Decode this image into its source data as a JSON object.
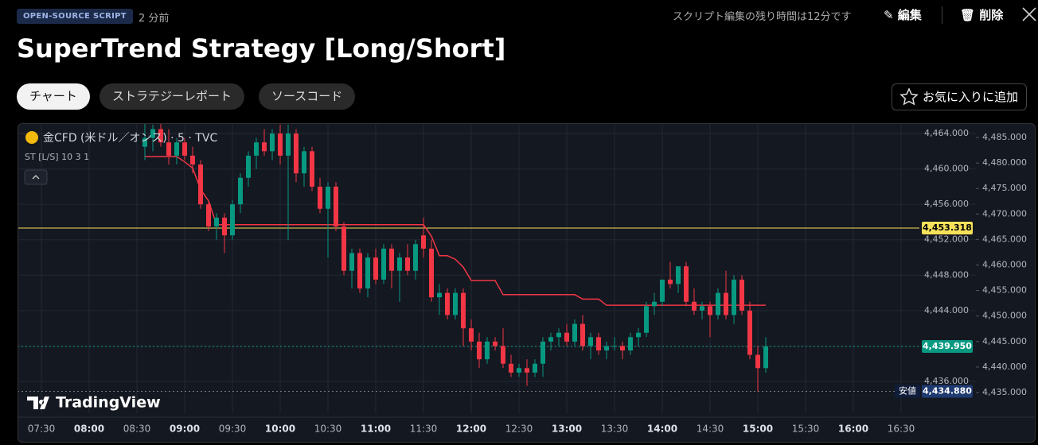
{
  "header": {
    "badge": "OPEN-SOURCE SCRIPT",
    "age": "2 分前",
    "edit_notice": "スクリプト編集の残り時間は12分です",
    "edit": "編集",
    "delete": "削除",
    "title": "SuperTrend Strategy [Long/Short]"
  },
  "tabs": [
    "チャート",
    "ストラテジーレポート",
    "ソースコード"
  ],
  "favorite": "お気に入りに追加",
  "chart_data": {
    "type": "candlestick",
    "symbol": "金CFD (米ドル／オンス) · 5 · TVC",
    "watermark": "TradingView",
    "x": [
      "08:35",
      "08:40",
      "08:45",
      "08:50",
      "08:55",
      "09:00",
      "09:05",
      "09:10",
      "09:15",
      "09:20",
      "09:25",
      "09:30",
      "09:35",
      "09:40",
      "09:45",
      "09:50",
      "09:55",
      "10:00",
      "10:05",
      "10:10",
      "10:15",
      "10:20",
      "10:25",
      "10:30",
      "10:35",
      "10:40",
      "10:45",
      "10:50",
      "10:55",
      "11:00",
      "11:05",
      "11:10",
      "11:15",
      "11:20",
      "11:25",
      "11:30",
      "11:35",
      "11:40",
      "11:45",
      "11:50",
      "11:55",
      "12:00",
      "12:05",
      "12:10",
      "12:15",
      "12:20",
      "12:25",
      "12:30",
      "12:35",
      "12:40",
      "12:45",
      "12:50",
      "12:55",
      "13:00",
      "13:05",
      "13:10",
      "13:15",
      "13:20",
      "13:25",
      "13:30",
      "13:35",
      "13:40",
      "13:45",
      "13:50",
      "13:55",
      "14:00",
      "14:05",
      "14:10",
      "14:15",
      "14:20",
      "14:25",
      "14:30",
      "14:35",
      "14:40",
      "14:45",
      "14:50",
      "14:55",
      "15:00",
      "15:05"
    ],
    "open": [
      4462.5,
      4463.5,
      4464.5,
      4463,
      4461.5,
      4463,
      4461.5,
      4460.5,
      4456,
      4453.5,
      4454.5,
      4452.5,
      4456,
      4459,
      4461.5,
      4463,
      4462,
      4464,
      4461.5,
      4464,
      4459.5,
      4462,
      4458,
      4455.5,
      4458,
      4453.5,
      4448.5,
      4450.5,
      4446.5,
      4450,
      4447.5,
      4451,
      4448.5,
      4450,
      4448.5,
      4452.5,
      4451,
      4445.5,
      4446,
      4443.5,
      4446,
      4442,
      4440.5,
      4438.5,
      4440.5,
      4440,
      4438,
      4437,
      4437.5,
      4437,
      4438,
      4440.5,
      4441,
      4441.5,
      4440.5,
      4442.5,
      4440,
      4441,
      4439.5,
      4440,
      4440,
      4439.5,
      4441,
      4441.5,
      4444.5,
      4445,
      4447.5,
      4447,
      4449,
      4445,
      4444,
      4444.5,
      4443.5,
      4446,
      4443.5,
      4447.5,
      4444,
      4439,
      4437.5
    ],
    "high": [
      4465.5,
      4465,
      4465.5,
      4464.5,
      4463.5,
      4463.5,
      4462.5,
      4461,
      4456.5,
      4455,
      4455,
      4456.5,
      4459.5,
      4462,
      4463.5,
      4464.5,
      4464.5,
      4465,
      4465,
      4464.5,
      4462.5,
      4462.5,
      4459,
      4458.5,
      4458.5,
      4454,
      4451,
      4451,
      4450.5,
      4451,
      4451.5,
      4451.5,
      4450.5,
      4451.5,
      4452,
      4454.5,
      4452,
      4447,
      4446.5,
      4446.5,
      4446.5,
      4443,
      4441.5,
      4441,
      4441,
      4442,
      4439,
      4438,
      4438.5,
      4438.5,
      4441,
      4441.5,
      4442,
      4442.5,
      4443,
      4443.5,
      4441.5,
      4441.5,
      4440.5,
      4441,
      4440.5,
      4441.5,
      4442,
      4445,
      4446,
      4447.5,
      4449.5,
      4449,
      4449.5,
      4446.5,
      4445,
      4445,
      4446.5,
      4448.5,
      4448,
      4448,
      4445,
      4440,
      4441
    ],
    "low": [
      4461,
      4462,
      4462.5,
      4460.5,
      4460.5,
      4461,
      4459.5,
      4455.5,
      4453,
      4452,
      4450.5,
      4452,
      4455,
      4458,
      4460,
      4461.5,
      4461,
      4460.5,
      4452,
      4458.5,
      4458,
      4457.5,
      4455,
      4450,
      4453,
      4448,
      4446.5,
      4446,
      4445.5,
      4447,
      4447,
      4446.5,
      4445,
      4448,
      4447.5,
      4450,
      4445,
      4443.5,
      4443,
      4443,
      4440,
      4439.5,
      4437.5,
      4438,
      4439.5,
      4437.5,
      4436.5,
      4436.5,
      4435.5,
      4436.5,
      4436.5,
      4439.5,
      4440,
      4440,
      4440,
      4439.5,
      4438.5,
      4439,
      4438.5,
      4439.5,
      4438.5,
      4439,
      4440,
      4441,
      4443.5,
      4444.5,
      4446.5,
      4446,
      4444.5,
      4443.5,
      4443,
      4441,
      4443,
      4443,
      4442.5,
      4443.5,
      4438.5,
      4434.88,
      4437
    ],
    "close": [
      4463.5,
      4464.5,
      4463,
      4461.5,
      4463,
      4461.5,
      4460.5,
      4456,
      4453.5,
      4454.5,
      4452.5,
      4456,
      4459,
      4461.5,
      4463,
      4462,
      4464,
      4461.5,
      4464,
      4459.5,
      4462,
      4458,
      4455.5,
      4458,
      4453.5,
      4448.5,
      4450.5,
      4446.5,
      4450,
      4447.5,
      4451,
      4448.5,
      4450,
      4448.5,
      4451.5,
      4451,
      4445.5,
      4446,
      4443.5,
      4446,
      4442,
      4440.5,
      4438.5,
      4440.5,
      4440,
      4438,
      4437,
      4437.5,
      4437,
      4438,
      4440.5,
      4441,
      4441.5,
      4440.5,
      4442.5,
      4440,
      4441,
      4439.5,
      4440,
      4440,
      4439.5,
      4441,
      4441.5,
      4444.5,
      4445,
      4447.5,
      4447,
      4449,
      4445,
      4444,
      4444.5,
      4443.5,
      4446,
      4443.5,
      4447.5,
      4444,
      4439,
      4437.5,
      4439.95
    ],
    "up_color": "#089981",
    "down_color": "#f23645",
    "series": [
      {
        "name": "ST [L/S] 10 3 1",
        "color": "#f23645",
        "values": [
          4461.4,
          4461.4,
          4461.4,
          4461.4,
          4461.4,
          4460.8,
          4460.1,
          4457.7,
          4456.4,
          4453.7,
          4453.7,
          4453.7,
          4453.7,
          4453.7,
          4453.7,
          4453.7,
          4453.7,
          4453.7,
          4453.7,
          4453.7,
          4453.7,
          4453.7,
          4453.7,
          4453.7,
          4453.7,
          4453.7,
          4453.7,
          4453.7,
          4453.7,
          4453.7,
          4453.7,
          4453.7,
          4453.7,
          4453.7,
          4453.7,
          4453.7,
          4452.4,
          4450.2,
          4450.2,
          4449.8,
          4448.9,
          4447.4,
          4447.4,
          4447.4,
          4447.4,
          4445.8,
          4445.8,
          4445.8,
          4445.8,
          4445.8,
          4445.8,
          4445.8,
          4445.8,
          4445.8,
          4445.8,
          4445.3,
          4445.3,
          4445.3,
          4444.6,
          4444.6,
          4444.6,
          4444.6,
          4444.6,
          4444.6,
          4444.6,
          4444.6,
          4444.6,
          4444.6,
          4444.6,
          4444.6,
          4444.6,
          4444.6,
          4444.6,
          4444.6,
          4444.6,
          4444.6,
          4444.6,
          4444.6,
          4444.6
        ]
      }
    ],
    "xlim": [
      "07:15",
      "16:39"
    ],
    "xticks": [
      "07:30",
      "08:00",
      "08:30",
      "09:00",
      "09:30",
      "10:00",
      "10:30",
      "11:00",
      "11:30",
      "12:00",
      "12:30",
      "13:00",
      "13:30",
      "14:00",
      "14:30",
      "15:00",
      "15:30",
      "16:00",
      "16:30"
    ],
    "ylim": [
      4432.41,
      4464.99
    ],
    "yticks": [
      {
        "value": 4436,
        "label": "4,436.000"
      },
      {
        "value": 4440,
        "label": "4,440.000"
      },
      {
        "value": 4444,
        "label": "4,444.000"
      },
      {
        "value": 4448,
        "label": "4,448.000"
      },
      {
        "value": 4452,
        "label": "4,452.000"
      },
      {
        "value": 4456,
        "label": "4,456.000"
      },
      {
        "value": 4460,
        "label": "4,460.000"
      },
      {
        "value": 4464,
        "label": "4,464.000"
      }
    ],
    "y2lim": [
      4430.95,
      4487.49
    ],
    "y2ticks": [
      {
        "value": 4435,
        "label": "4,435.000"
      },
      {
        "value": 4440,
        "label": "4,440.000"
      },
      {
        "value": 4445,
        "label": "4,445.000"
      },
      {
        "value": 4450,
        "label": "4,450.000"
      },
      {
        "value": 4455,
        "label": "4,455.000"
      },
      {
        "value": 4460,
        "label": "4,460.000"
      },
      {
        "value": 4465,
        "label": "4,465.000"
      },
      {
        "value": 4470,
        "label": "4,470.000"
      },
      {
        "value": 4475,
        "label": "4,475.000"
      },
      {
        "value": 4480,
        "label": "4,480.000"
      },
      {
        "value": 4485,
        "label": "4,485.000"
      }
    ],
    "price_lines": [
      {
        "value": 4453.318,
        "label": "4,453.318",
        "color": "#f7e15a"
      },
      {
        "value": 4439.95,
        "label": "4,439.950",
        "color": "#089981"
      },
      {
        "value": 4434.88,
        "label": "4,434.880",
        "color": "#1e3a70",
        "name": "安値"
      }
    ],
    "grid": true
  }
}
